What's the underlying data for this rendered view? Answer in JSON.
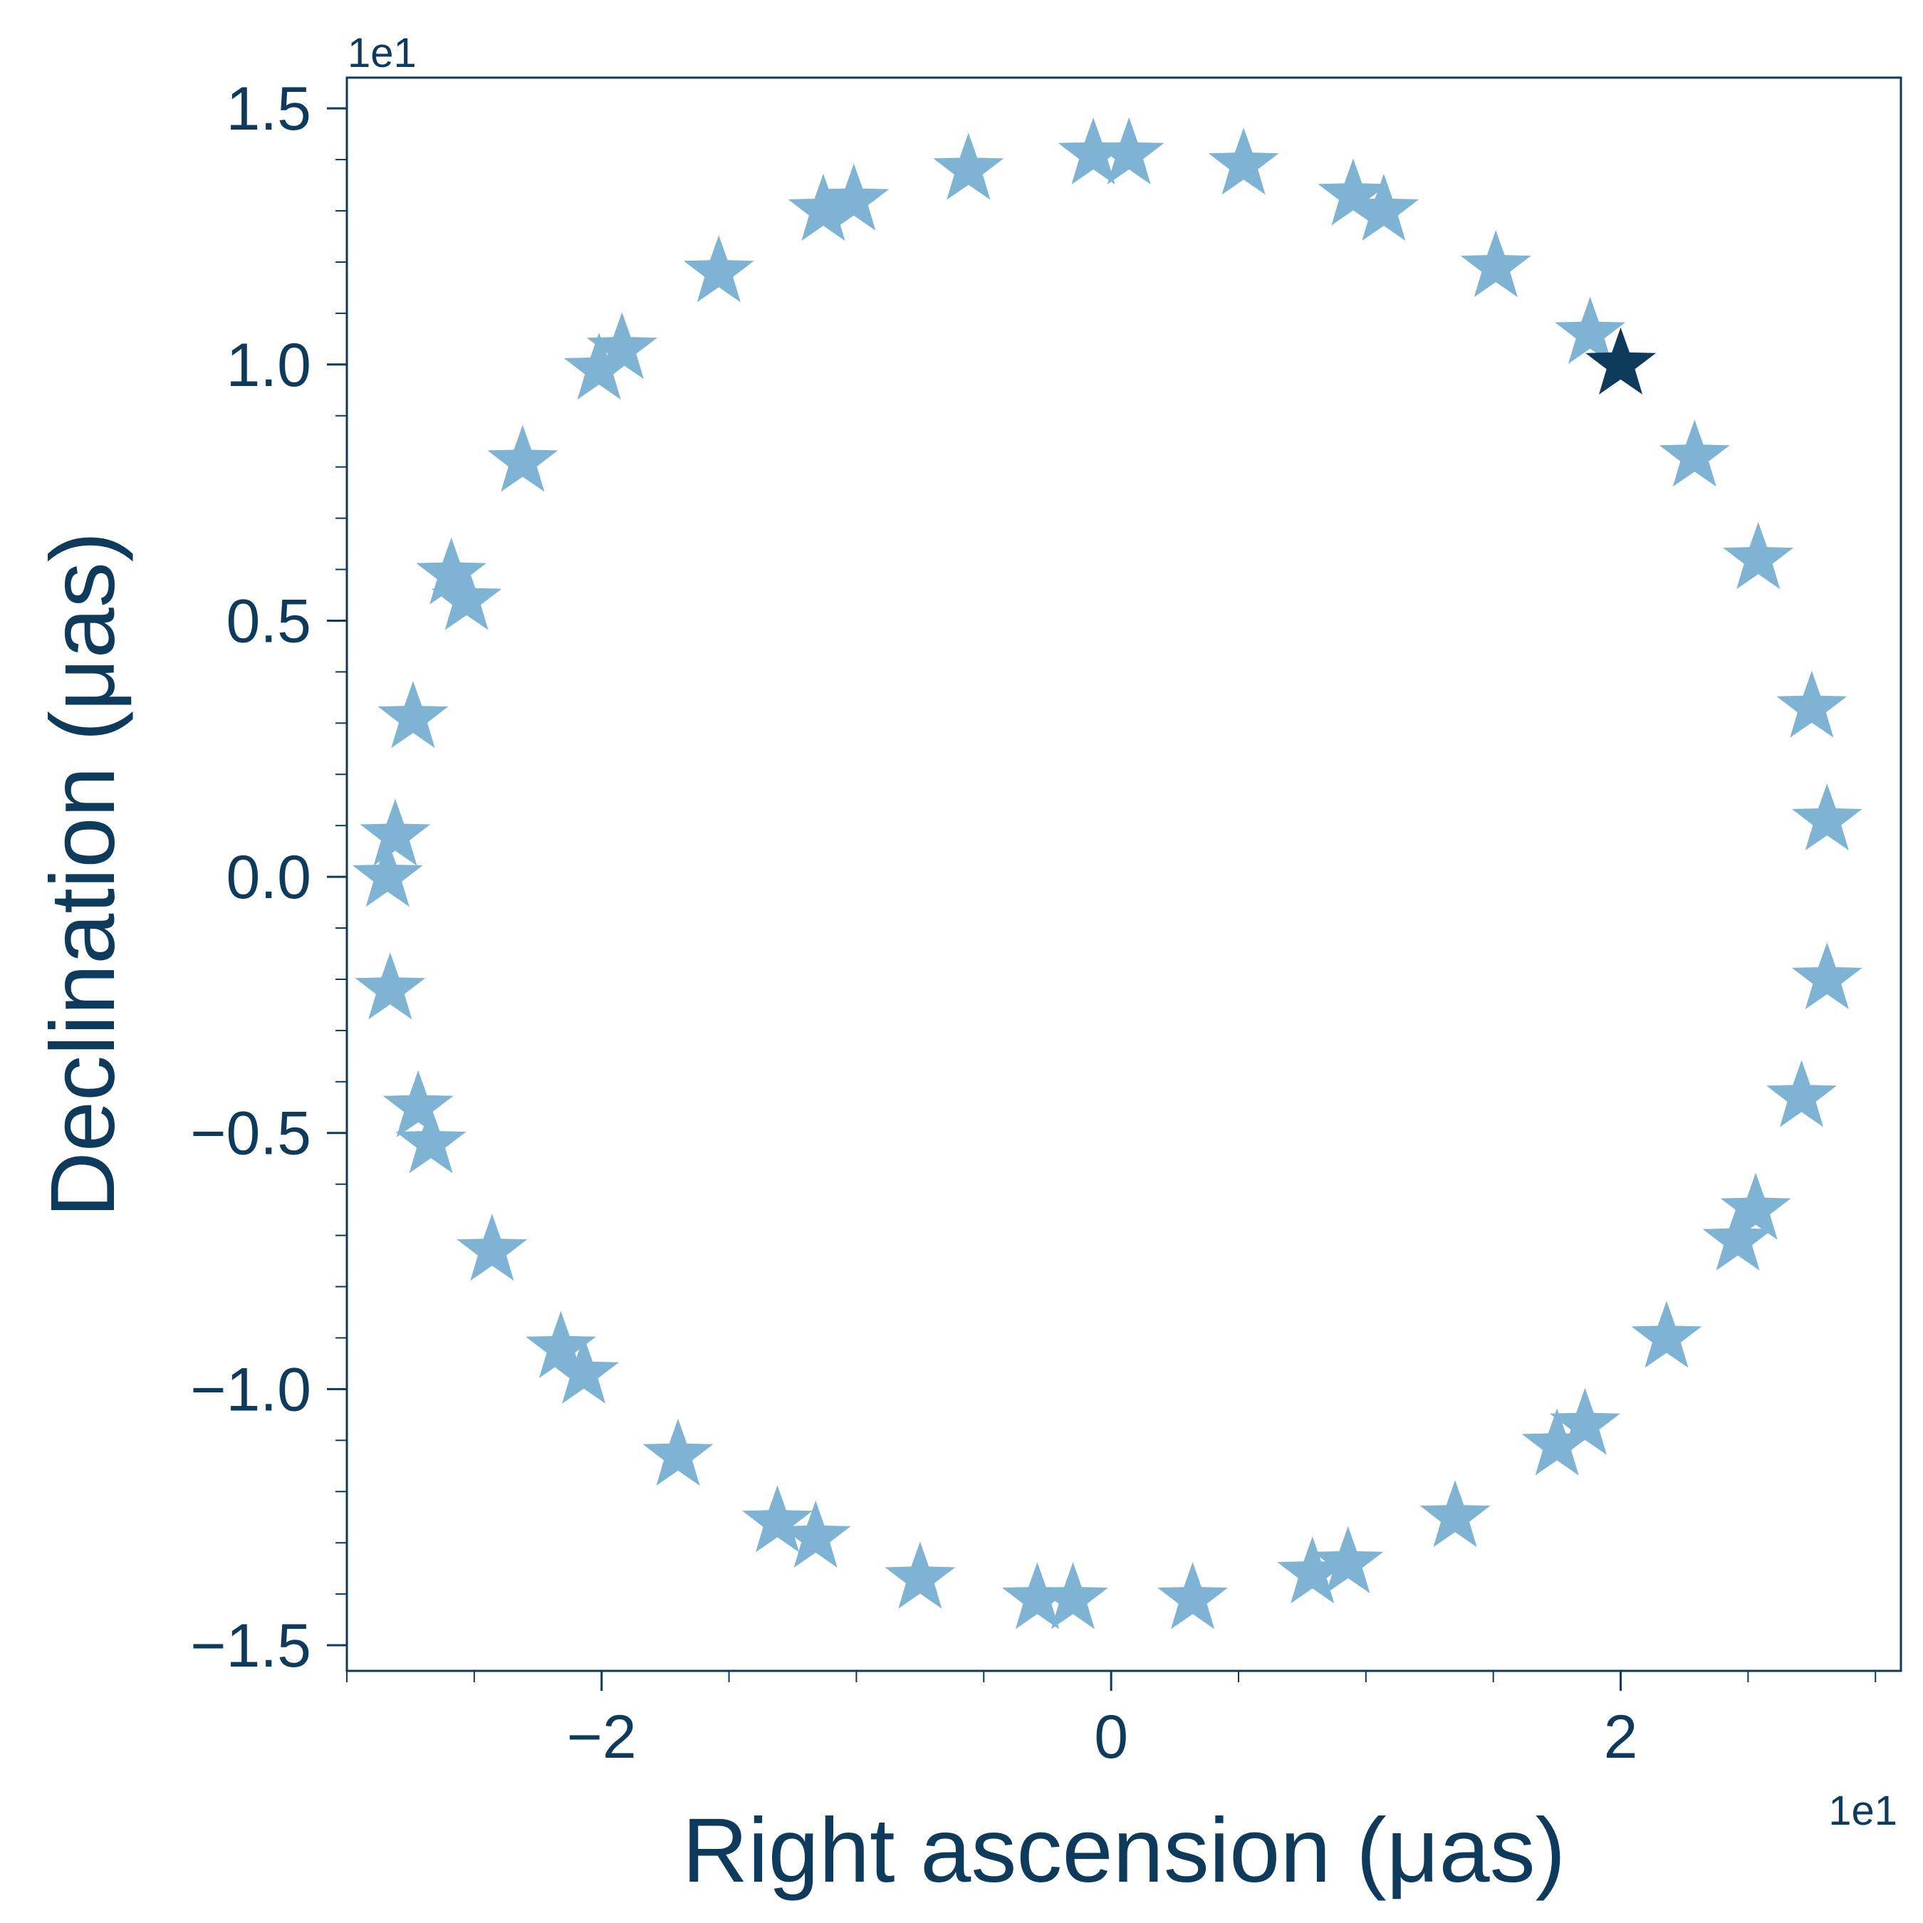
{
  "chart_data": {
    "type": "scatter",
    "title": "",
    "xlabel": "Right ascension (μas)",
    "ylabel": "Declination (μas)",
    "x_offset_label": "1e1",
    "y_offset_label": "1e1",
    "xlim": [
      -3.0,
      3.1
    ],
    "ylim": [
      -1.55,
      1.56
    ],
    "x_ticks": [
      {
        "value": -2,
        "label": "−2"
      },
      {
        "value": 0,
        "label": "0"
      },
      {
        "value": 2,
        "label": "2"
      }
    ],
    "y_ticks": [
      {
        "value": 1.5,
        "label": "1.5"
      },
      {
        "value": 1.0,
        "label": "1.0"
      },
      {
        "value": 0.5,
        "label": "0.5"
      },
      {
        "value": 0.0,
        "label": "0.0"
      },
      {
        "value": -0.5,
        "label": "−0.5"
      },
      {
        "value": -1.0,
        "label": "−1.0"
      },
      {
        "value": -1.5,
        "label": "−1.5"
      }
    ],
    "x_minor_step": 0.5,
    "y_minor_step": 0.1,
    "grid": false,
    "legend": "none",
    "colors": {
      "axis": "#0e3a5c",
      "points": "#7fb3d3",
      "highlight": "#0e3a5c"
    },
    "marker": "star",
    "series": [
      {
        "x": [
          -0.07,
          0.07,
          0.52,
          0.95,
          1.07,
          1.51,
          1.88,
          2.29,
          2.54,
          2.75,
          2.81,
          2.81,
          2.71,
          2.53,
          2.46,
          2.18,
          1.86,
          1.75,
          1.35,
          0.93,
          0.79,
          0.32,
          -0.15,
          -0.29,
          -0.75,
          -1.16,
          -1.31,
          -1.7,
          -2.07,
          -2.16,
          -2.43,
          -2.67,
          -2.72,
          -2.83,
          -2.84,
          -2.81,
          -2.74,
          -2.59,
          -2.53,
          -2.31,
          -2.01,
          -1.92,
          -1.54,
          -1.01,
          -1.13,
          -0.56
        ],
        "y": [
          1.41,
          1.41,
          1.39,
          1.33,
          1.3,
          1.19,
          1.06,
          0.82,
          0.62,
          0.33,
          0.11,
          -0.2,
          -0.43,
          -0.65,
          -0.71,
          -0.9,
          -1.07,
          -1.11,
          -1.25,
          -1.34,
          -1.36,
          -1.41,
          -1.41,
          -1.41,
          -1.37,
          -1.29,
          -1.26,
          -1.13,
          -0.97,
          -0.92,
          -0.73,
          -0.52,
          -0.45,
          -0.22,
          0.0,
          0.08,
          0.31,
          0.59,
          0.54,
          0.81,
          0.99,
          1.03,
          1.18,
          1.32,
          1.3,
          1.38
        ]
      }
    ],
    "highlight_point": {
      "x": 2.0,
      "y": 1.0
    }
  }
}
